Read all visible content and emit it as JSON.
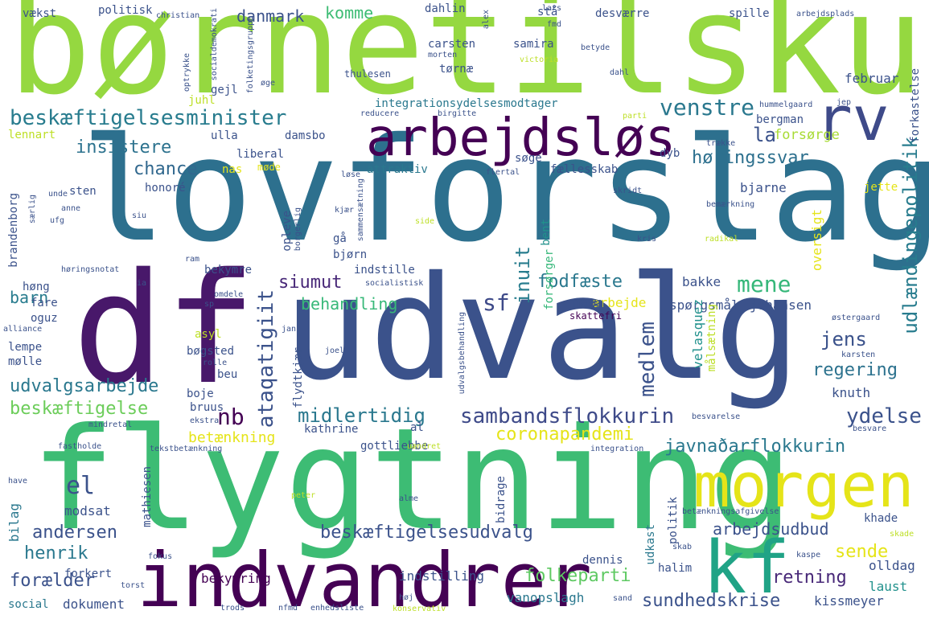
{
  "palette": {
    "purple": "#440154",
    "indigo": "#3b528b",
    "blue": "#31688e",
    "teal": "#21918c",
    "green": "#35b779",
    "lime": "#8fd744",
    "yellow": "#e5e419"
  },
  "words": [
    {
      "text": "børnetilskud",
      "color": "#95d840"
    },
    {
      "text": "lovforslag",
      "color": "#2d708e"
    },
    {
      "text": "udvalg",
      "color": "#3b528b"
    },
    {
      "text": "df",
      "color": "#48186a"
    },
    {
      "text": "flygtning",
      "color": "#3dbc74"
    },
    {
      "text": "indvandrer",
      "color": "#440154"
    },
    {
      "text": "morgen",
      "color": "#e5e419"
    },
    {
      "text": "kf",
      "color": "#20a386"
    },
    {
      "text": "arbejdsløs",
      "color": "#440154"
    },
    {
      "text": "rv",
      "color": "#3e4a89"
    },
    {
      "text": "beskæftigelsesminister",
      "color": "#287c8e"
    },
    {
      "text": "venstre",
      "color": "#2a788e"
    },
    {
      "text": "la",
      "color": "#3b528b"
    },
    {
      "text": "forsørge",
      "color": "#a8db34"
    },
    {
      "text": "insistere",
      "color": "#2c728e"
    },
    {
      "text": "chance",
      "color": "#31688e"
    },
    {
      "text": "høringssvar",
      "color": "#2d708e"
    },
    {
      "text": "udlændingepolitik",
      "color": "#287c8e"
    },
    {
      "text": "siumut",
      "color": "#482878"
    },
    {
      "text": "sf",
      "color": "#3e4a89"
    },
    {
      "text": "inuit",
      "color": "#287d8e"
    },
    {
      "text": "ataqatigiit",
      "color": "#3b528b"
    },
    {
      "text": "mene",
      "color": "#35b779"
    },
    {
      "text": "fodfæste",
      "color": "#2a788e"
    },
    {
      "text": "behandling",
      "color": "#37b878"
    },
    {
      "text": "regering",
      "color": "#2c728e"
    },
    {
      "text": "jens",
      "color": "#3b528b"
    },
    {
      "text": "medlem",
      "color": "#3b528b"
    },
    {
      "text": "sambandsflokkurin",
      "color": "#3e4a89"
    },
    {
      "text": "ydelse",
      "color": "#3b528b"
    },
    {
      "text": "midlertidig",
      "color": "#2a788e"
    },
    {
      "text": "nb",
      "color": "#440154"
    },
    {
      "text": "coronapandemi",
      "color": "#e5e419"
    },
    {
      "text": "javnaðarflokkurin",
      "color": "#2a788e"
    },
    {
      "text": "udvalgsarbejde",
      "color": "#2a788e"
    },
    {
      "text": "beskæftigelse",
      "color": "#6ccd5a"
    },
    {
      "text": "betænkning",
      "color": "#e5e419"
    },
    {
      "text": "el",
      "color": "#3b528b"
    },
    {
      "text": "andersen",
      "color": "#3b528b"
    },
    {
      "text": "henrik",
      "color": "#2a788e"
    },
    {
      "text": "beskæftigelsesudvalg",
      "color": "#3b528b"
    },
    {
      "text": "arbejdsudbud",
      "color": "#3b528b"
    },
    {
      "text": "sende",
      "color": "#e5e419"
    },
    {
      "text": "folkeparti",
      "color": "#5ec962"
    },
    {
      "text": "retning",
      "color": "#482878"
    },
    {
      "text": "sundhedskrise",
      "color": "#3b528b"
    },
    {
      "text": "forælder",
      "color": "#3b528b"
    },
    {
      "text": "dokument",
      "color": "#3b528b"
    },
    {
      "text": "bekymring",
      "color": "#440154"
    },
    {
      "text": "indstilling",
      "color": "#3b528b"
    },
    {
      "text": "vanopslagh",
      "color": "#2a788e"
    },
    {
      "text": "kissmeyer",
      "color": "#3b528b"
    },
    {
      "text": "laust",
      "color": "#21918c"
    },
    {
      "text": "olldag",
      "color": "#3b528b"
    },
    {
      "text": "bakke",
      "color": "#3b528b"
    },
    {
      "text": "spørgsmål",
      "color": "#3b528b"
    },
    {
      "text": "johansen",
      "color": "#3b528b"
    },
    {
      "text": "arbejde",
      "color": "#e5e419"
    },
    {
      "text": "nawa",
      "color": "#3b528b"
    },
    {
      "text": "skattefri",
      "color": "#440154"
    },
    {
      "text": "velasquez",
      "color": "#21918c"
    },
    {
      "text": "målsætning",
      "color": "#bddf26"
    },
    {
      "text": "knuth",
      "color": "#3b528b"
    },
    {
      "text": "barn",
      "color": "#287c8e"
    },
    {
      "text": "høng",
      "color": "#3b528b"
    },
    {
      "text": "fare",
      "color": "#3b528b"
    },
    {
      "text": "oguz",
      "color": "#3b528b"
    },
    {
      "text": "lempe",
      "color": "#3b528b"
    },
    {
      "text": "mølle",
      "color": "#3b528b"
    },
    {
      "text": "bøgsted",
      "color": "#3b528b"
    },
    {
      "text": "asyl",
      "color": "#bddf26"
    },
    {
      "text": "boje",
      "color": "#3b528b"
    },
    {
      "text": "beu",
      "color": "#3b528b"
    },
    {
      "text": "bruus",
      "color": "#3b528b"
    },
    {
      "text": "kathrine",
      "color": "#3b528b"
    },
    {
      "text": "al",
      "color": "#3b528b"
    },
    {
      "text": "gottliebbe",
      "color": "#3b528b"
    },
    {
      "text": "bidrage",
      "color": "#3b528b"
    },
    {
      "text": "bilag",
      "color": "#2a788e"
    },
    {
      "text": "modsat",
      "color": "#3b528b"
    },
    {
      "text": "mathiesen",
      "color": "#3b528b"
    },
    {
      "text": "forkert",
      "color": "#3b528b"
    },
    {
      "text": "social",
      "color": "#2a788e"
    },
    {
      "text": "dennis",
      "color": "#3b528b"
    },
    {
      "text": "halim",
      "color": "#3b528b"
    },
    {
      "text": "udkast",
      "color": "#2a788e"
    },
    {
      "text": "politik",
      "color": "#3b528b"
    },
    {
      "text": "khade",
      "color": "#3b528b"
    },
    {
      "text": "danmark",
      "color": "#3b528b"
    },
    {
      "text": "komme",
      "color": "#3dbc74"
    },
    {
      "text": "politisk",
      "color": "#3b528b"
    },
    {
      "text": "vækst",
      "color": "#3b528b"
    },
    {
      "text": "dahlin",
      "color": "#3b528b"
    },
    {
      "text": "stå",
      "color": "#3b528b"
    },
    {
      "text": "desværre",
      "color": "#3b528b"
    },
    {
      "text": "spille",
      "color": "#3b528b"
    },
    {
      "text": "carsten",
      "color": "#3b528b"
    },
    {
      "text": "samira",
      "color": "#3b528b"
    },
    {
      "text": "tørnæ",
      "color": "#3b528b"
    },
    {
      "text": "gejl",
      "color": "#3b528b"
    },
    {
      "text": "thulesen",
      "color": "#3b528b"
    },
    {
      "text": "juhl",
      "color": "#bddf26"
    },
    {
      "text": "integrationsydelsesmodtager",
      "color": "#2a788e"
    },
    {
      "text": "februar",
      "color": "#3b528b"
    },
    {
      "text": "forkastelse",
      "color": "#3b528b"
    },
    {
      "text": "bergman",
      "color": "#3b528b"
    },
    {
      "text": "ulla",
      "color": "#3b528b"
    },
    {
      "text": "damsbo",
      "color": "#3b528b"
    },
    {
      "text": "liberal",
      "color": "#3b528b"
    },
    {
      "text": "nas",
      "color": "#e5e419"
    },
    {
      "text": "møde",
      "color": "#e5e419"
    },
    {
      "text": "honoré",
      "color": "#3b528b"
    },
    {
      "text": "sten",
      "color": "#3b528b"
    },
    {
      "text": "attraktiv",
      "color": "#2a788e"
    },
    {
      "text": "fællesskab",
      "color": "#3b528b"
    },
    {
      "text": "dyb",
      "color": "#3b528b"
    },
    {
      "text": "jette",
      "color": "#e5e419"
    },
    {
      "text": "søge",
      "color": "#3b528b"
    },
    {
      "text": "oversigt",
      "color": "#e5e419"
    },
    {
      "text": "bjarne",
      "color": "#3b528b"
    },
    {
      "text": "bent",
      "color": "#21918c"
    },
    {
      "text": "forsørger",
      "color": "#35b779"
    },
    {
      "text": "bjørn",
      "color": "#3b528b"
    },
    {
      "text": "indstille",
      "color": "#3b528b"
    },
    {
      "text": "opleve",
      "color": "#3b528b"
    },
    {
      "text": "gå",
      "color": "#3b528b"
    },
    {
      "text": "bekymre",
      "color": "#3b528b"
    },
    {
      "text": "brandenborg",
      "color": "#3b528b"
    },
    {
      "text": "lennart",
      "color": "#bddf26"
    },
    {
      "text": "flydtkjær",
      "color": "#3b528b"
    },
    {
      "text": "christian",
      "color": "#3b528b"
    },
    {
      "text": "lars",
      "color": "#3b528b"
    },
    {
      "text": "fmd",
      "color": "#3b528b"
    },
    {
      "text": "arbejdsplads",
      "color": "#3b528b"
    },
    {
      "text": "alex",
      "color": "#3b528b"
    },
    {
      "text": "betyde",
      "color": "#3b528b"
    },
    {
      "text": "morten",
      "color": "#3b528b"
    },
    {
      "text": "victoria",
      "color": "#bddf26"
    },
    {
      "text": "dahl",
      "color": "#3b528b"
    },
    {
      "text": "socialdemokrati",
      "color": "#3b528b"
    },
    {
      "text": "optrykke",
      "color": "#3b528b"
    },
    {
      "text": "folketingsgruppe",
      "color": "#3b528b"
    },
    {
      "text": "øge",
      "color": "#3b528b"
    },
    {
      "text": "reducere",
      "color": "#3b528b"
    },
    {
      "text": "birgitte",
      "color": "#3b528b"
    },
    {
      "text": "parti",
      "color": "#bddf26"
    },
    {
      "text": "hummelgaard",
      "color": "#3b528b"
    },
    {
      "text": "jep",
      "color": "#3b528b"
    },
    {
      "text": "trække",
      "color": "#3b528b"
    },
    {
      "text": "flertal",
      "color": "#3b528b"
    },
    {
      "text": "løse",
      "color": "#3b528b"
    },
    {
      "text": "skridt",
      "color": "#3b528b"
    },
    {
      "text": "sammensætning",
      "color": "#3b528b"
    },
    {
      "text": "bemærkning",
      "color": "#3b528b"
    },
    {
      "text": "kris",
      "color": "#3b528b"
    },
    {
      "text": "radikal",
      "color": "#bddf26"
    },
    {
      "text": "side",
      "color": "#bddf26"
    },
    {
      "text": "siu",
      "color": "#3b528b"
    },
    {
      "text": "kjær",
      "color": "#3b528b"
    },
    {
      "text": "borgerlig",
      "color": "#3b528b"
    },
    {
      "text": "unde",
      "color": "#3b528b"
    },
    {
      "text": "særlig",
      "color": "#3b528b"
    },
    {
      "text": "anne",
      "color": "#3b528b"
    },
    {
      "text": "ufg",
      "color": "#3b528b"
    },
    {
      "text": "ram",
      "color": "#3b528b"
    },
    {
      "text": "høringsnotat",
      "color": "#3b528b"
    },
    {
      "text": "ia",
      "color": "#3b528b"
    },
    {
      "text": "socialistisk",
      "color": "#3b528b"
    },
    {
      "text": "omdele",
      "color": "#3b528b"
    },
    {
      "text": "sp",
      "color": "#3b528b"
    },
    {
      "text": "alliance",
      "color": "#3b528b"
    },
    {
      "text": "jan",
      "color": "#3b528b"
    },
    {
      "text": "joel",
      "color": "#3b528b"
    },
    {
      "text": "rolle",
      "color": "#3b528b"
    },
    {
      "text": "udvalgsbehandling",
      "color": "#3b528b"
    },
    {
      "text": "østergaard",
      "color": "#3b528b"
    },
    {
      "text": "karsten",
      "color": "#3b528b"
    },
    {
      "text": "mindretal",
      "color": "#3b528b"
    },
    {
      "text": "ekstra",
      "color": "#3b528b"
    },
    {
      "text": "besvarelse",
      "color": "#3b528b"
    },
    {
      "text": "besvare",
      "color": "#3b528b"
    },
    {
      "text": "fastholde",
      "color": "#3b528b"
    },
    {
      "text": "tekstbetænkning",
      "color": "#3b528b"
    },
    {
      "text": "uændret",
      "color": "#bddf26"
    },
    {
      "text": "integration",
      "color": "#3b528b"
    },
    {
      "text": "have",
      "color": "#3b528b"
    },
    {
      "text": "peter",
      "color": "#bddf26"
    },
    {
      "text": "alme",
      "color": "#3b528b"
    },
    {
      "text": "betænkningsafgivelse",
      "color": "#3b528b"
    },
    {
      "text": "skade",
      "color": "#bddf26"
    },
    {
      "text": "skab",
      "color": "#3b528b"
    },
    {
      "text": "kaspe",
      "color": "#3b528b"
    },
    {
      "text": "fokus",
      "color": "#3b528b"
    },
    {
      "text": "torst",
      "color": "#3b528b"
    },
    {
      "text": "sand",
      "color": "#3b528b"
    },
    {
      "text": "høj",
      "color": "#3b528b"
    },
    {
      "text": "trods",
      "color": "#3b528b"
    },
    {
      "text": "nfmd",
      "color": "#3b528b"
    },
    {
      "text": "enhedsliste",
      "color": "#3b528b"
    },
    {
      "text": "konservativ",
      "color": "#bddf26"
    }
  ]
}
